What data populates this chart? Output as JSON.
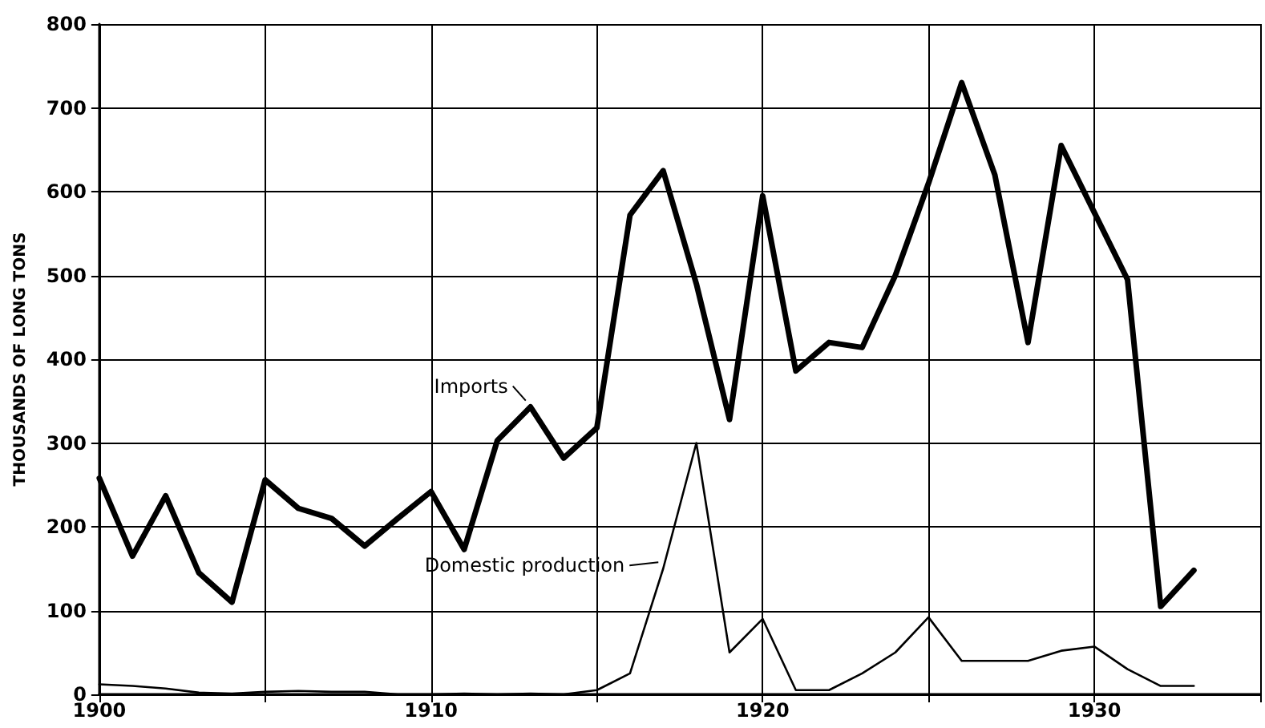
{
  "chart_data": {
    "type": "line",
    "ylabel": "THOUSANDS OF LONG TONS",
    "x": [
      1900,
      1901,
      1902,
      1903,
      1904,
      1905,
      1906,
      1907,
      1908,
      1909,
      1910,
      1911,
      1912,
      1913,
      1914,
      1915,
      1916,
      1917,
      1918,
      1919,
      1920,
      1921,
      1922,
      1923,
      1924,
      1925,
      1926,
      1927,
      1928,
      1929,
      1930,
      1931,
      1932,
      1933
    ],
    "series": [
      {
        "color": "#000000",
        "values": [
          258,
          165,
          237,
          145,
          110,
          256,
          222,
          210,
          177,
          210,
          242,
          173,
          303,
          343,
          282,
          318,
          572,
          625,
          490,
          328,
          595,
          386,
          420,
          414,
          500,
          610,
          730,
          620,
          420,
          655,
          575,
          495,
          105,
          148
        ]
      },
      {
        "color": "#000000",
        "values": [
          12,
          10,
          7,
          2,
          1,
          3,
          4,
          3,
          3,
          0,
          0,
          1,
          0,
          1,
          0,
          5,
          25,
          150,
          300,
          50,
          90,
          5,
          5,
          25,
          50,
          92,
          40,
          40,
          40,
          52,
          57,
          30,
          10,
          10
        ]
      }
    ],
    "annotations": [
      {
        "text": "Imports",
        "x": 1913,
        "y": 343
      },
      {
        "text": "Domestic production",
        "x": 1917,
        "y": 150
      }
    ],
    "xlim": [
      1900,
      1935
    ],
    "xticks": [
      1900,
      {
        "value": 1905,
        "label": null
      },
      1910,
      {
        "value": 1915,
        "label": null
      },
      1920,
      {
        "value": 1925,
        "label": null
      },
      1930,
      {
        "value": 1935,
        "label": null
      }
    ],
    "ylim": [
      0,
      800
    ],
    "yticks": [
      0,
      100,
      200,
      300,
      400,
      500,
      600,
      700,
      800
    ],
    "grid": true,
    "marker": "none",
    "line_style": "solid"
  }
}
